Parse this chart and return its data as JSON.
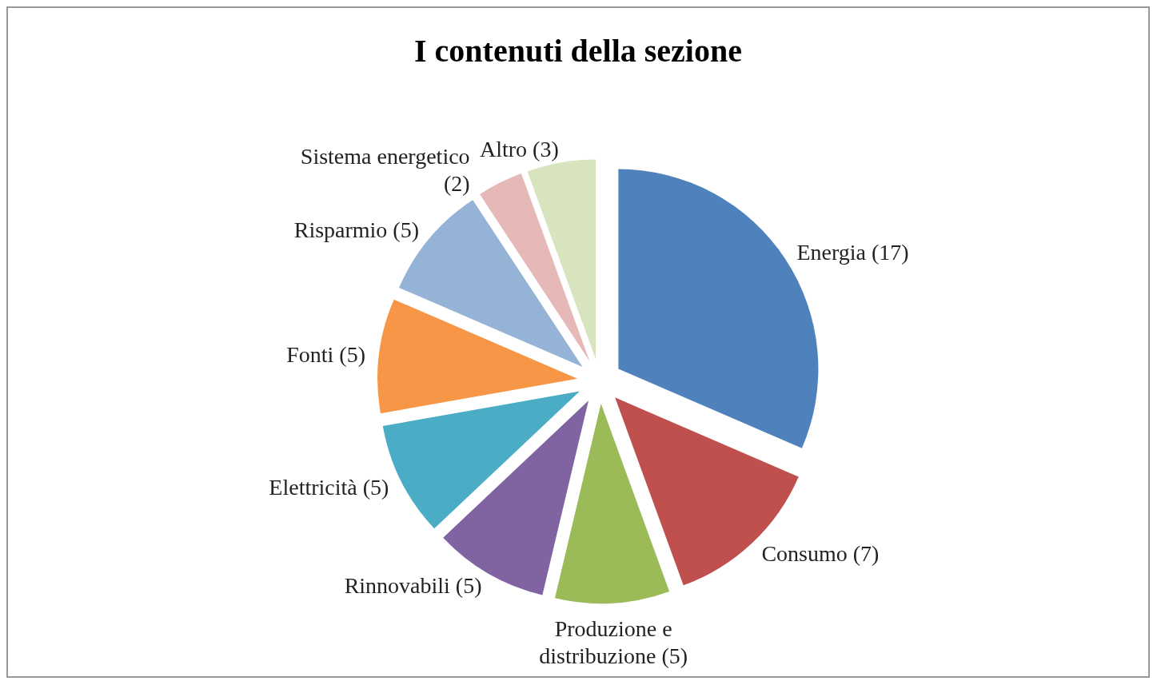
{
  "chart_data": {
    "type": "pie",
    "title": "I contenuti della sezione",
    "categories": [
      "Energia (17)",
      "Consumo (7)",
      "Produzione e distribuzione (5)",
      "Rinnovabili (5)",
      "Elettricità (5)",
      "Fonti (5)",
      "Risparmio (5)",
      "Sistema energetico (2)",
      "Altro (3)"
    ],
    "values": [
      17,
      7,
      5,
      5,
      5,
      5,
      5,
      2,
      3
    ],
    "colors": [
      "#4f81bd",
      "#c0504d",
      "#9bbb59",
      "#8064a2",
      "#4bacc6",
      "#f79646",
      "#95b3d7",
      "#e6b9b8",
      "#d7e4bd"
    ],
    "legend": false
  }
}
